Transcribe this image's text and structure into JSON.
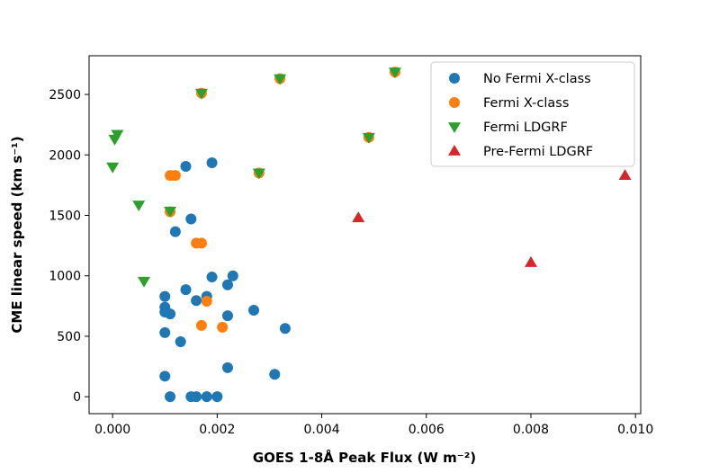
{
  "chart_data": {
    "type": "scatter",
    "title": "",
    "xlabel": "GOES 1-8Å Peak Flux (W m⁻²)",
    "ylabel": "CME linear speed (km s⁻¹)",
    "xlim": [
      -0.00045,
      0.0101
    ],
    "ylim": [
      -140,
      2820
    ],
    "xticks": [
      0.0,
      0.002,
      0.004,
      0.006,
      0.008,
      0.01
    ],
    "xtick_labels": [
      "0.000",
      "0.002",
      "0.004",
      "0.006",
      "0.008",
      "0.010"
    ],
    "yticks": [
      0,
      500,
      1000,
      1500,
      2000,
      2500
    ],
    "ytick_labels": [
      "0",
      "500",
      "1000",
      "1500",
      "2000",
      "2500"
    ],
    "grid": false,
    "legend_position": "top-right",
    "series": [
      {
        "name": "No Fermi X-class",
        "marker": "circle",
        "color": "#1f77b4",
        "points": [
          [
            0.0014,
            1905
          ],
          [
            0.0019,
            1935
          ],
          [
            0.0015,
            1470
          ],
          [
            0.0012,
            1365
          ],
          [
            0.0019,
            990
          ],
          [
            0.0023,
            1000
          ],
          [
            0.0022,
            925
          ],
          [
            0.0014,
            885
          ],
          [
            0.001,
            830
          ],
          [
            0.0018,
            830
          ],
          [
            0.0016,
            795
          ],
          [
            0.001,
            740
          ],
          [
            0.001,
            700
          ],
          [
            0.0011,
            685
          ],
          [
            0.0027,
            715
          ],
          [
            0.0022,
            670
          ],
          [
            0.001,
            530
          ],
          [
            0.0033,
            565
          ],
          [
            0.0013,
            455
          ],
          [
            0.0022,
            240
          ],
          [
            0.001,
            170
          ],
          [
            0.0031,
            185
          ],
          [
            0.0011,
            0
          ],
          [
            0.0015,
            0
          ],
          [
            0.0016,
            0
          ],
          [
            0.0018,
            0
          ],
          [
            0.002,
            0
          ]
        ]
      },
      {
        "name": "Fermi X-class",
        "marker": "circle",
        "color": "#ff7f0e",
        "points": [
          [
            0.0017,
            2510
          ],
          [
            0.0032,
            2630
          ],
          [
            0.0054,
            2685
          ],
          [
            0.0049,
            2145
          ],
          [
            0.0028,
            1850
          ],
          [
            0.0011,
            1830
          ],
          [
            0.0012,
            1830
          ],
          [
            0.0011,
            1530
          ],
          [
            0.0016,
            1270
          ],
          [
            0.0017,
            1270
          ],
          [
            0.0018,
            790
          ],
          [
            0.0017,
            590
          ],
          [
            0.0021,
            575
          ]
        ]
      },
      {
        "name": "Fermi LDGRF",
        "marker": "triangle-down",
        "color": "#2ca02c",
        "points": [
          [
            0.0017,
            2510
          ],
          [
            0.0032,
            2630
          ],
          [
            0.0054,
            2685
          ],
          [
            0.0049,
            2145
          ],
          [
            0.0028,
            1850
          ],
          [
            9e-05,
            2170
          ],
          [
            4e-05,
            2130
          ],
          [
            0.0,
            1900
          ],
          [
            0.0011,
            1535
          ],
          [
            0.0005,
            1585
          ],
          [
            0.0006,
            955
          ]
        ]
      },
      {
        "name": "Pre-Fermi LDGRF",
        "marker": "triangle-up",
        "color": "#d62728",
        "points": [
          [
            0.0098,
            1830
          ],
          [
            0.0047,
            1480
          ],
          [
            0.008,
            1110
          ]
        ]
      }
    ]
  }
}
